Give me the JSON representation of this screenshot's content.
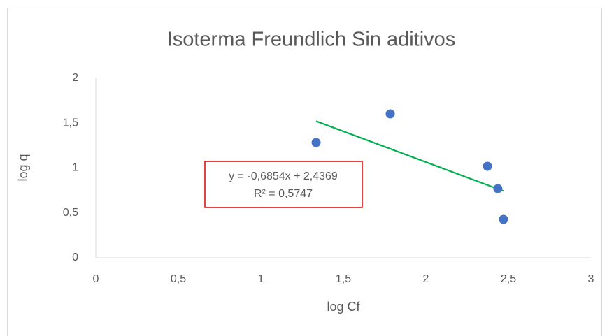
{
  "chart_data": {
    "type": "scatter",
    "title": "Isoterma Freundlich Sin aditivos",
    "x_label": "log Cf",
    "y_label": "log q",
    "series": [
      {
        "color": "#4472c4",
        "x": [
          1.335,
          1.784,
          2.373,
          2.436,
          2.47
        ],
        "values": [
          1.284,
          1.603,
          1.019,
          0.77,
          0.428
        ]
      }
    ],
    "trendline": {
      "color": "#00b050",
      "slope": -0.6854,
      "intercept": 2.4369,
      "r2": 0.5747,
      "equation_label": "y = -0,6854x + 2,4369",
      "r2_label": "R² = 0,5747"
    },
    "xlim": [
      0,
      3
    ],
    "xticks": [
      0,
      {
        "value": 0.5,
        "label": "0,5"
      },
      1,
      {
        "value": 1.5,
        "label": "1,5"
      },
      2,
      {
        "value": 2.5,
        "label": "2,5"
      },
      3
    ],
    "ylim": [
      0,
      2
    ],
    "yticks": [
      0,
      {
        "value": 0.5,
        "label": "0,5"
      },
      1,
      {
        "value": 1.5,
        "label": "1,5"
      },
      2
    ],
    "grid": false
  }
}
